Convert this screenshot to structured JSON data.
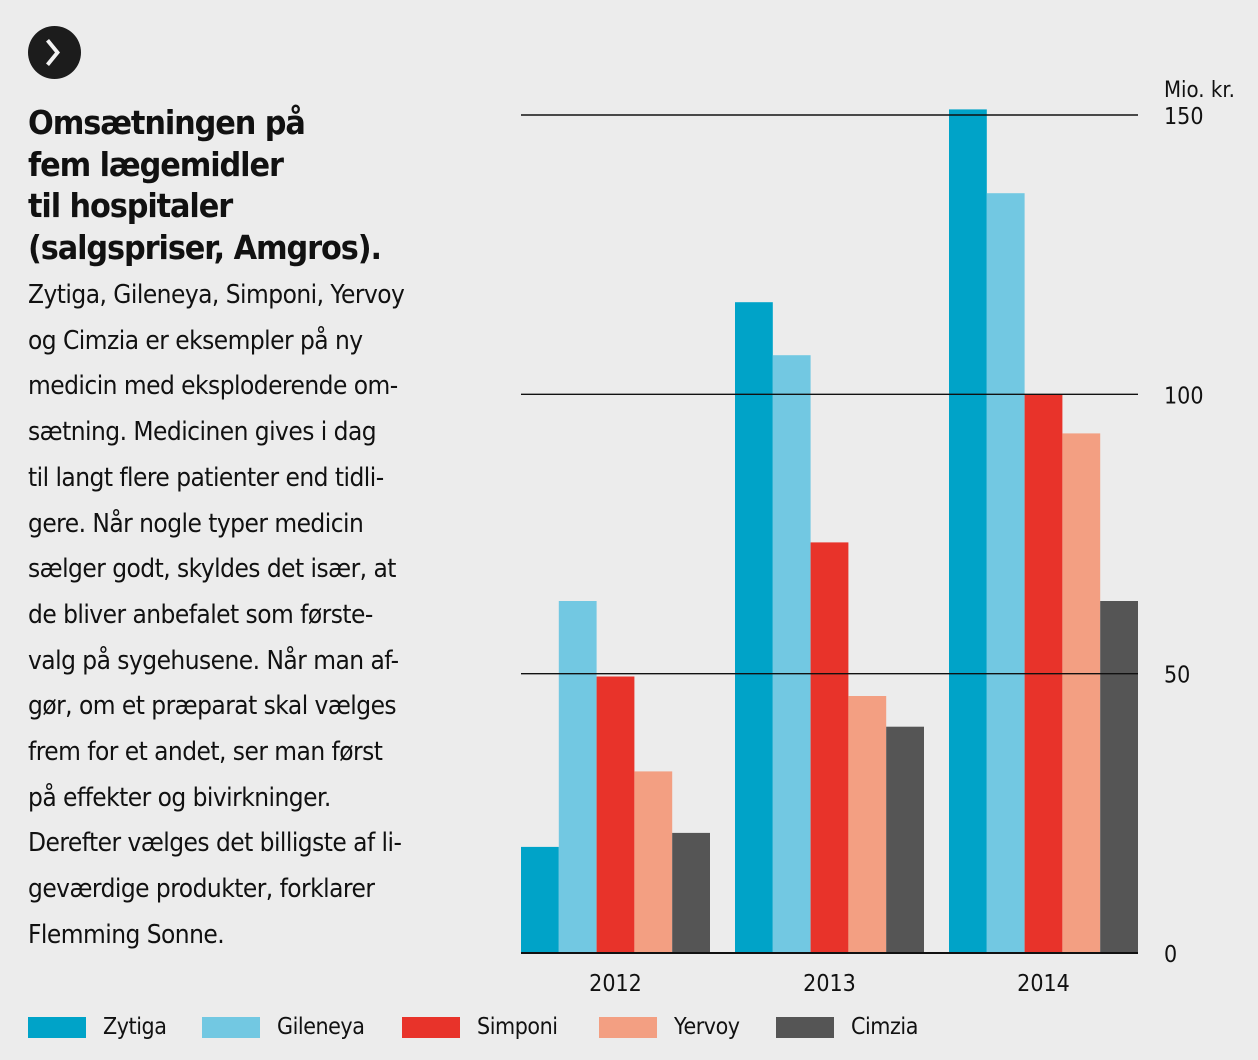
{
  "badge": {
    "icon": "chevron-right-icon",
    "glyph": "❯"
  },
  "headline": {
    "lines": [
      "Omsætningen på",
      "fem lægemidler",
      "til hospitaler",
      "(salgspriser, Amgros)."
    ]
  },
  "body": {
    "lines": [
      "Zytiga, Gileneya, Simponi, Yervoy",
      "og Cimzia er eksempler på ny",
      "medicin med eksploderende om-",
      "sætning. Medicinen gives i dag",
      "til langt flere patienter end tidli-",
      "gere. Når nogle typer medicin",
      "sælger godt, skyldes det især, at",
      "de bliver anbefalet som første-",
      "valg på sygehusene. Når man af-",
      "gør, om et præparat skal vælges",
      "frem for et andet, ser man først",
      "på effekter og bivirkninger.",
      "Derefter vælges det billigste af li-",
      "geværdige produkter, forklarer",
      "Flemming Sonne."
    ]
  },
  "chart_data": {
    "type": "bar",
    "title": "Omsætningen på fem lægemidler til hospitaler (salgspriser, Amgros).",
    "xlabel": "",
    "ylabel": "Mio. kr.",
    "ylim": [
      0,
      150
    ],
    "yticks": [
      0,
      50,
      100,
      150
    ],
    "grid": true,
    "y_axis_side": "right",
    "legend_position": "bottom",
    "categories": [
      "2012",
      "2013",
      "2014"
    ],
    "series": [
      {
        "name": "Zytiga",
        "color": "#00a3c8",
        "values": [
          19,
          116.5,
          151
        ]
      },
      {
        "name": "Gileneya",
        "color": "#72c8e2",
        "values": [
          63,
          107,
          136
        ]
      },
      {
        "name": "Simponi",
        "color": "#e8332a",
        "values": [
          49.5,
          73.5,
          100
        ]
      },
      {
        "name": "Yervoy",
        "color": "#f39f82",
        "values": [
          32.5,
          46,
          93
        ]
      },
      {
        "name": "Cimzia",
        "color": "#555555",
        "values": [
          21.5,
          40.5,
          63
        ]
      }
    ]
  }
}
